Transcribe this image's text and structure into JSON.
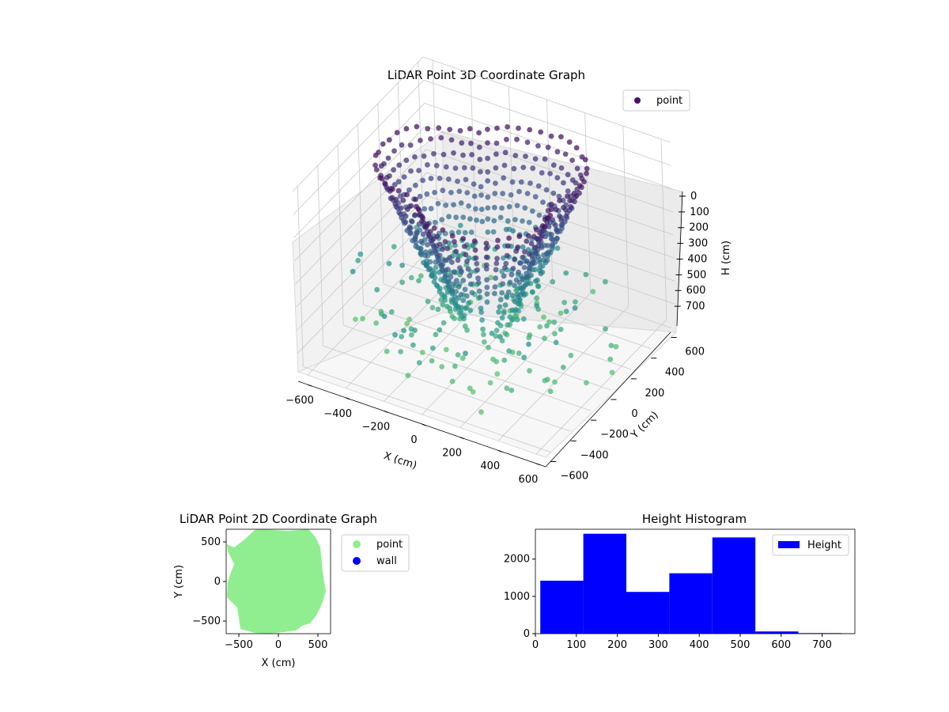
{
  "chart_data": [
    {
      "type": "scatter",
      "title": "LiDAR Point 3D Coordinate Graph",
      "xlabel": "X (cm)",
      "ylabel": "Y (cm)",
      "zlabel": "H (cm)",
      "legend": [
        {
          "label": "point",
          "color": "#440f75"
        }
      ],
      "legend_placement": "top-right",
      "x_ticks": [
        "−600",
        "−400",
        "−200",
        "0",
        "200",
        "400",
        "600"
      ],
      "y_ticks": [
        "−600",
        "−400",
        "−200",
        "0",
        "200",
        "400",
        "600"
      ],
      "z_ticks": [
        "0",
        "100",
        "200",
        "300",
        "400",
        "500",
        "600",
        "700"
      ],
      "xlim": [
        -650,
        650
      ],
      "ylim": [
        -650,
        650
      ],
      "zlim": [
        0,
        780
      ],
      "z_inverted": true,
      "grid": true,
      "colormap": [
        "#440154",
        "#3b528b",
        "#21918c",
        "#5ec962"
      ],
      "scan_rings": 7,
      "scan_ring_radius": 520,
      "description_of_points": "rings of vertically stacked points around the origin; colour by height"
    },
    {
      "type": "scatter",
      "title": "LiDAR Point 2D Coordinate Graph",
      "xlabel": "X (cm)",
      "ylabel": "Y (cm)",
      "x_ticks": [
        "−500",
        "0",
        "500"
      ],
      "y_ticks": [
        "−500",
        "0",
        "500"
      ],
      "xlim": [
        -660,
        660
      ],
      "ylim": [
        -660,
        660
      ],
      "legend": [
        {
          "label": "point",
          "color": "#90ee90"
        },
        {
          "label": "wall",
          "color": "#0000ff"
        }
      ],
      "legend_placement": "outside right"
    },
    {
      "type": "bar",
      "title": "Height Histogram",
      "legend": [
        {
          "label": "Height",
          "color": "#0000ff"
        }
      ],
      "legend_placement": "top-right",
      "bins": [
        {
          "from": 12,
          "to": 117,
          "count": 1420
        },
        {
          "from": 117,
          "to": 222,
          "count": 2680
        },
        {
          "from": 222,
          "to": 327,
          "count": 1120
        },
        {
          "from": 327,
          "to": 432,
          "count": 1620
        },
        {
          "from": 432,
          "to": 537,
          "count": 2580
        },
        {
          "from": 537,
          "to": 642,
          "count": 60
        },
        {
          "from": 642,
          "to": 747,
          "count": 15
        },
        {
          "from": 747,
          "to": 852,
          "count": 8
        }
      ],
      "x_ticks": [
        "0",
        "100",
        "200",
        "300",
        "400",
        "500",
        "600",
        "700"
      ],
      "y_ticks": [
        "0",
        "1000",
        "2000"
      ],
      "xlim": [
        0,
        780
      ],
      "ylim": [
        0,
        2800
      ],
      "color": "#0000ff"
    }
  ]
}
